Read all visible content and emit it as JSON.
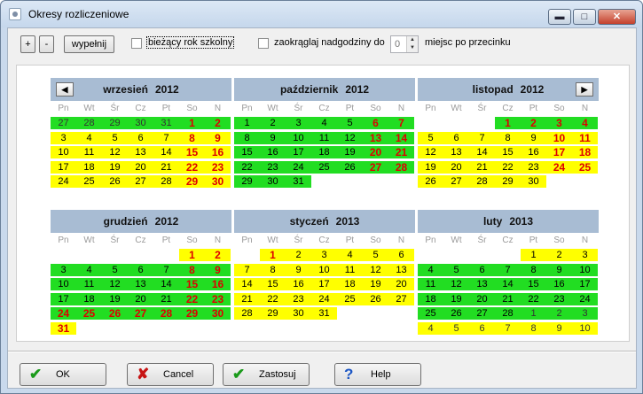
{
  "window": {
    "title": "Okresy rozliczeniowe",
    "min": "▬",
    "max": "□",
    "close": "✕"
  },
  "toolbar": {
    "plus_label": "+",
    "minus_label": "-",
    "fill_label": "wypełnij",
    "current_year_label": "bieżący rok szkolny",
    "round_label": "zaokrąglaj nadgodziny do",
    "round_value": "0",
    "decimals_label": "miejsc po przecinku"
  },
  "weekdays": [
    "Pn",
    "Wt",
    "Śr",
    "Cz",
    "Pt",
    "So",
    "N"
  ],
  "nav": {
    "prev": "◀",
    "next": "▶"
  },
  "months": [
    {
      "name": "wrzesień",
      "year": "2012",
      "rows": [
        [
          [
            "27",
            "go"
          ],
          [
            "28",
            "go"
          ],
          [
            "29",
            "go"
          ],
          [
            "30",
            "go"
          ],
          [
            "31",
            "go"
          ],
          [
            "1",
            "gr"
          ],
          [
            "2",
            "gr"
          ]
        ],
        [
          [
            "3",
            "y"
          ],
          [
            "4",
            "y"
          ],
          [
            "5",
            "y"
          ],
          [
            "6",
            "y"
          ],
          [
            "7",
            "y"
          ],
          [
            "8",
            "yr"
          ],
          [
            "9",
            "yr"
          ]
        ],
        [
          [
            "10",
            "y"
          ],
          [
            "11",
            "y"
          ],
          [
            "12",
            "y"
          ],
          [
            "13",
            "y"
          ],
          [
            "14",
            "y"
          ],
          [
            "15",
            "yr"
          ],
          [
            "16",
            "yr"
          ]
        ],
        [
          [
            "17",
            "y"
          ],
          [
            "18",
            "y"
          ],
          [
            "19",
            "y"
          ],
          [
            "20",
            "y"
          ],
          [
            "21",
            "y"
          ],
          [
            "22",
            "yr"
          ],
          [
            "23",
            "yr"
          ]
        ],
        [
          [
            "24",
            "y"
          ],
          [
            "25",
            "y"
          ],
          [
            "26",
            "y"
          ],
          [
            "27",
            "y"
          ],
          [
            "28",
            "y"
          ],
          [
            "29",
            "yr"
          ],
          [
            "30",
            "yr"
          ]
        ]
      ]
    },
    {
      "name": "październik",
      "year": "2012",
      "rows": [
        [
          [
            "1",
            "g"
          ],
          [
            "2",
            "g"
          ],
          [
            "3",
            "g"
          ],
          [
            "4",
            "g"
          ],
          [
            "5",
            "g"
          ],
          [
            "6",
            "gr"
          ],
          [
            "7",
            "gr"
          ]
        ],
        [
          [
            "8",
            "g"
          ],
          [
            "9",
            "g"
          ],
          [
            "10",
            "g"
          ],
          [
            "11",
            "g"
          ],
          [
            "12",
            "g"
          ],
          [
            "13",
            "gr"
          ],
          [
            "14",
            "gr"
          ]
        ],
        [
          [
            "15",
            "g"
          ],
          [
            "16",
            "g"
          ],
          [
            "17",
            "g"
          ],
          [
            "18",
            "g"
          ],
          [
            "19",
            "g"
          ],
          [
            "20",
            "gr"
          ],
          [
            "21",
            "gr"
          ]
        ],
        [
          [
            "22",
            "g"
          ],
          [
            "23",
            "g"
          ],
          [
            "24",
            "g"
          ],
          [
            "25",
            "g"
          ],
          [
            "26",
            "g"
          ],
          [
            "27",
            "gr"
          ],
          [
            "28",
            "gr"
          ]
        ],
        [
          [
            "29",
            "g"
          ],
          [
            "30",
            "g"
          ],
          [
            "31",
            "g"
          ],
          [
            "",
            "n"
          ],
          [
            "",
            "n"
          ],
          [
            "",
            "n"
          ],
          [
            "",
            "n"
          ]
        ]
      ]
    },
    {
      "name": "listopad",
      "year": "2012",
      "rows": [
        [
          [
            "",
            "w"
          ],
          [
            "",
            "w"
          ],
          [
            "",
            "w"
          ],
          [
            "1",
            "gr"
          ],
          [
            "2",
            "gr"
          ],
          [
            "3",
            "gr"
          ],
          [
            "4",
            "gr"
          ]
        ],
        [
          [
            "5",
            "y"
          ],
          [
            "6",
            "y"
          ],
          [
            "7",
            "y"
          ],
          [
            "8",
            "y"
          ],
          [
            "9",
            "y"
          ],
          [
            "10",
            "yr"
          ],
          [
            "11",
            "yr"
          ]
        ],
        [
          [
            "12",
            "y"
          ],
          [
            "13",
            "y"
          ],
          [
            "14",
            "y"
          ],
          [
            "15",
            "y"
          ],
          [
            "16",
            "y"
          ],
          [
            "17",
            "yr"
          ],
          [
            "18",
            "yr"
          ]
        ],
        [
          [
            "19",
            "y"
          ],
          [
            "20",
            "y"
          ],
          [
            "21",
            "y"
          ],
          [
            "22",
            "y"
          ],
          [
            "23",
            "y"
          ],
          [
            "24",
            "yr"
          ],
          [
            "25",
            "yr"
          ]
        ],
        [
          [
            "26",
            "y"
          ],
          [
            "27",
            "y"
          ],
          [
            "28",
            "y"
          ],
          [
            "29",
            "y"
          ],
          [
            "30",
            "y"
          ],
          [
            "",
            "n"
          ],
          [
            "",
            "n"
          ]
        ]
      ]
    },
    {
      "name": "grudzień",
      "year": "2012",
      "rows": [
        [
          [
            "",
            "w"
          ],
          [
            "",
            "w"
          ],
          [
            "",
            "w"
          ],
          [
            "",
            "w"
          ],
          [
            "",
            "w"
          ],
          [
            "1",
            "yr"
          ],
          [
            "2",
            "yr"
          ]
        ],
        [
          [
            "3",
            "g"
          ],
          [
            "4",
            "g"
          ],
          [
            "5",
            "g"
          ],
          [
            "6",
            "g"
          ],
          [
            "7",
            "g"
          ],
          [
            "8",
            "gr"
          ],
          [
            "9",
            "gr"
          ]
        ],
        [
          [
            "10",
            "g"
          ],
          [
            "11",
            "g"
          ],
          [
            "12",
            "g"
          ],
          [
            "13",
            "g"
          ],
          [
            "14",
            "g"
          ],
          [
            "15",
            "gr"
          ],
          [
            "16",
            "gr"
          ]
        ],
        [
          [
            "17",
            "g"
          ],
          [
            "18",
            "g"
          ],
          [
            "19",
            "g"
          ],
          [
            "20",
            "g"
          ],
          [
            "21",
            "g"
          ],
          [
            "22",
            "gr"
          ],
          [
            "23",
            "gr"
          ]
        ],
        [
          [
            "24",
            "gr"
          ],
          [
            "25",
            "gr"
          ],
          [
            "26",
            "gr"
          ],
          [
            "27",
            "gr"
          ],
          [
            "28",
            "gr"
          ],
          [
            "29",
            "gr"
          ],
          [
            "30",
            "gr"
          ]
        ],
        [
          [
            "31",
            "yr"
          ],
          [
            "",
            "n"
          ],
          [
            "",
            "n"
          ],
          [
            "",
            "n"
          ],
          [
            "",
            "n"
          ],
          [
            "",
            "n"
          ],
          [
            "",
            "n"
          ]
        ]
      ]
    },
    {
      "name": "styczeń",
      "year": "2013",
      "rows": [
        [
          [
            "",
            "w"
          ],
          [
            "1",
            "yr"
          ],
          [
            "2",
            "y"
          ],
          [
            "3",
            "y"
          ],
          [
            "4",
            "y"
          ],
          [
            "5",
            "y"
          ],
          [
            "6",
            "y"
          ]
        ],
        [
          [
            "7",
            "y"
          ],
          [
            "8",
            "y"
          ],
          [
            "9",
            "y"
          ],
          [
            "10",
            "y"
          ],
          [
            "11",
            "y"
          ],
          [
            "12",
            "y"
          ],
          [
            "13",
            "y"
          ]
        ],
        [
          [
            "14",
            "y"
          ],
          [
            "15",
            "y"
          ],
          [
            "16",
            "y"
          ],
          [
            "17",
            "y"
          ],
          [
            "18",
            "y"
          ],
          [
            "19",
            "y"
          ],
          [
            "20",
            "y"
          ]
        ],
        [
          [
            "21",
            "y"
          ],
          [
            "22",
            "y"
          ],
          [
            "23",
            "y"
          ],
          [
            "24",
            "y"
          ],
          [
            "25",
            "y"
          ],
          [
            "26",
            "y"
          ],
          [
            "27",
            "y"
          ]
        ],
        [
          [
            "28",
            "y"
          ],
          [
            "29",
            "y"
          ],
          [
            "30",
            "y"
          ],
          [
            "31",
            "y"
          ],
          [
            "",
            "n"
          ],
          [
            "",
            "n"
          ],
          [
            "",
            "n"
          ]
        ]
      ]
    },
    {
      "name": "luty",
      "year": "2013",
      "rows": [
        [
          [
            "",
            "w"
          ],
          [
            "",
            "w"
          ],
          [
            "",
            "w"
          ],
          [
            "",
            "w"
          ],
          [
            "1",
            "y"
          ],
          [
            "2",
            "y"
          ],
          [
            "3",
            "y"
          ]
        ],
        [
          [
            "4",
            "g"
          ],
          [
            "5",
            "g"
          ],
          [
            "6",
            "g"
          ],
          [
            "7",
            "g"
          ],
          [
            "8",
            "g"
          ],
          [
            "9",
            "g"
          ],
          [
            "10",
            "g"
          ]
        ],
        [
          [
            "11",
            "g"
          ],
          [
            "12",
            "g"
          ],
          [
            "13",
            "g"
          ],
          [
            "14",
            "g"
          ],
          [
            "15",
            "g"
          ],
          [
            "16",
            "g"
          ],
          [
            "17",
            "g"
          ]
        ],
        [
          [
            "18",
            "g"
          ],
          [
            "19",
            "g"
          ],
          [
            "20",
            "g"
          ],
          [
            "21",
            "g"
          ],
          [
            "22",
            "g"
          ],
          [
            "23",
            "g"
          ],
          [
            "24",
            "g"
          ]
        ],
        [
          [
            "25",
            "g"
          ],
          [
            "26",
            "g"
          ],
          [
            "27",
            "g"
          ],
          [
            "28",
            "g"
          ],
          [
            "1",
            "go"
          ],
          [
            "2",
            "go"
          ],
          [
            "3",
            "go"
          ]
        ],
        [
          [
            "4",
            "yo"
          ],
          [
            "5",
            "yo"
          ],
          [
            "6",
            "yo"
          ],
          [
            "7",
            "yo"
          ],
          [
            "8",
            "yo"
          ],
          [
            "9",
            "yo"
          ],
          [
            "10",
            "yo"
          ]
        ]
      ]
    }
  ],
  "buttons": {
    "ok": "OK",
    "cancel": "Cancel",
    "apply": "Zastosuj",
    "help": "Help"
  },
  "icons": {
    "ok": "check-icon",
    "cancel": "cross-icon",
    "apply": "check-icon",
    "help": "question-icon"
  },
  "colors": {
    "green": "#22dd22",
    "yellow": "#ffff00",
    "red_text": "#dd0000",
    "header": "#a8bcd3"
  }
}
